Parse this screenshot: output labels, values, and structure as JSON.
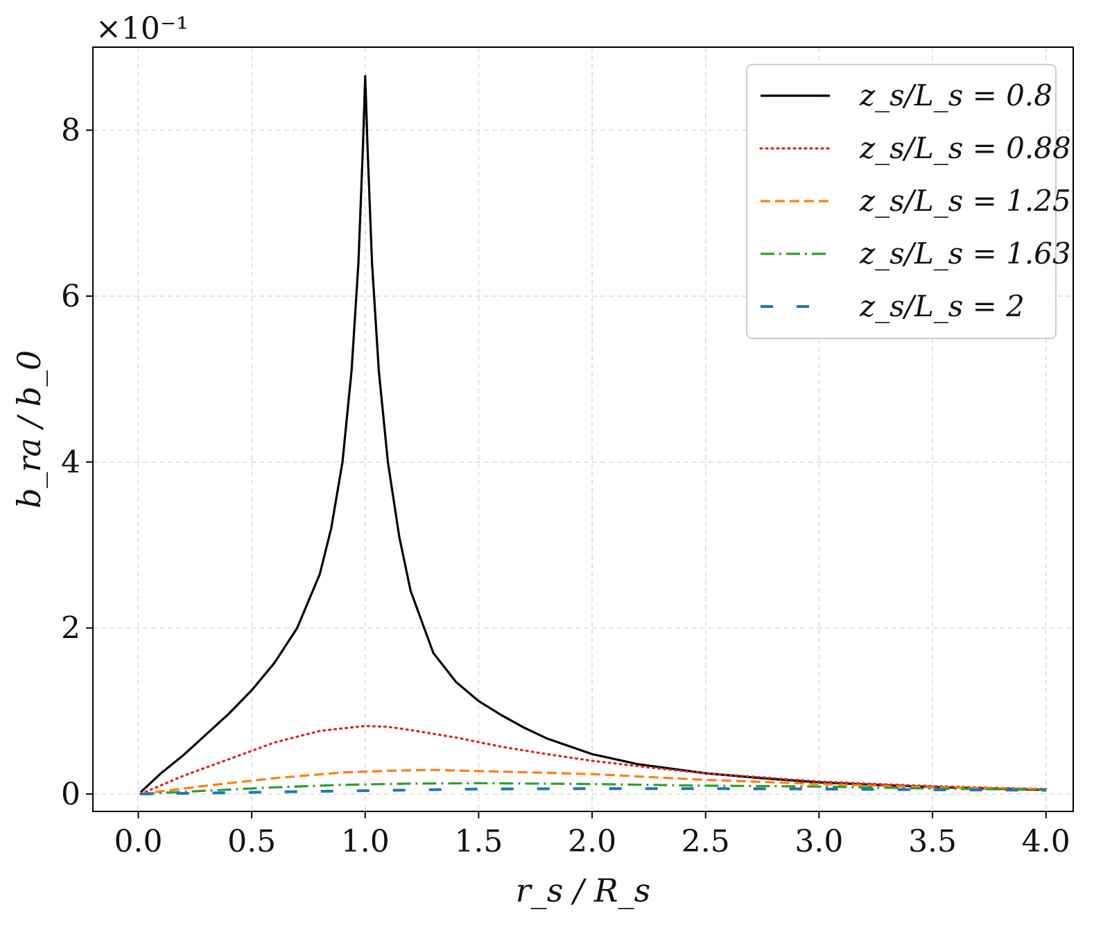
{
  "chart_data": {
    "type": "line",
    "xlabel": "r_s / R_s",
    "ylabel": "b_ra / b_0",
    "offset_text": "×10⁻¹",
    "grid": true,
    "legend_position": "top-right",
    "xlim": [
      -0.2,
      4.12
    ],
    "ylim": [
      -0.21,
      9.0
    ],
    "xticks": [
      0.0,
      0.5,
      1.0,
      1.5,
      2.0,
      2.5,
      3.0,
      3.5,
      4.0
    ],
    "xtick_labels": [
      "0.0",
      "0.5",
      "1.0",
      "1.5",
      "2.0",
      "2.5",
      "3.0",
      "3.5",
      "4.0"
    ],
    "yticks": [
      0,
      2,
      4,
      6,
      8
    ],
    "ytick_labels": [
      "0",
      "2",
      "4",
      "6",
      "8"
    ],
    "series": [
      {
        "name": "z_s/L_s = 0.8",
        "color": "#000000",
        "dash": "solid",
        "points": [
          [
            0.01,
            0.02
          ],
          [
            0.1,
            0.25
          ],
          [
            0.2,
            0.47
          ],
          [
            0.3,
            0.72
          ],
          [
            0.4,
            0.97
          ],
          [
            0.5,
            1.25
          ],
          [
            0.6,
            1.58
          ],
          [
            0.7,
            2.0
          ],
          [
            0.8,
            2.65
          ],
          [
            0.85,
            3.2
          ],
          [
            0.9,
            4.0
          ],
          [
            0.94,
            5.1
          ],
          [
            0.97,
            6.4
          ],
          [
            0.99,
            7.8
          ],
          [
            1.0,
            8.65
          ],
          [
            1.01,
            7.8
          ],
          [
            1.03,
            6.4
          ],
          [
            1.06,
            5.1
          ],
          [
            1.1,
            4.0
          ],
          [
            1.15,
            3.1
          ],
          [
            1.2,
            2.45
          ],
          [
            1.3,
            1.7
          ],
          [
            1.4,
            1.35
          ],
          [
            1.5,
            1.12
          ],
          [
            1.6,
            0.95
          ],
          [
            1.7,
            0.8
          ],
          [
            1.8,
            0.67
          ],
          [
            2.0,
            0.48
          ],
          [
            2.2,
            0.36
          ],
          [
            2.5,
            0.25
          ],
          [
            2.75,
            0.19
          ],
          [
            3.0,
            0.14
          ],
          [
            3.25,
            0.11
          ],
          [
            3.5,
            0.085
          ],
          [
            3.75,
            0.065
          ],
          [
            4.0,
            0.05
          ]
        ]
      },
      {
        "name": "z_s/L_s = 0.88",
        "color": "#d62728",
        "dash": "dotted",
        "points": [
          [
            0.01,
            0.0
          ],
          [
            0.2,
            0.22
          ],
          [
            0.4,
            0.42
          ],
          [
            0.6,
            0.62
          ],
          [
            0.8,
            0.76
          ],
          [
            1.0,
            0.82
          ],
          [
            1.1,
            0.81
          ],
          [
            1.2,
            0.77
          ],
          [
            1.4,
            0.68
          ],
          [
            1.6,
            0.57
          ],
          [
            1.8,
            0.48
          ],
          [
            2.0,
            0.4
          ],
          [
            2.25,
            0.32
          ],
          [
            2.5,
            0.25
          ],
          [
            2.75,
            0.2
          ],
          [
            3.0,
            0.15
          ],
          [
            3.25,
            0.12
          ],
          [
            3.5,
            0.095
          ],
          [
            3.75,
            0.075
          ],
          [
            4.0,
            0.06
          ]
        ]
      },
      {
        "name": "z_s/L_s = 1.25",
        "color": "#ff7f0e",
        "dash": "dashed",
        "points": [
          [
            0.01,
            0.0
          ],
          [
            0.3,
            0.1
          ],
          [
            0.6,
            0.19
          ],
          [
            0.9,
            0.26
          ],
          [
            1.1,
            0.28
          ],
          [
            1.3,
            0.29
          ],
          [
            1.6,
            0.27
          ],
          [
            2.0,
            0.24
          ],
          [
            2.5,
            0.17
          ],
          [
            3.0,
            0.12
          ],
          [
            3.5,
            0.08
          ],
          [
            4.0,
            0.06
          ]
        ]
      },
      {
        "name": "z_s/L_s = 1.63",
        "color": "#2ca02c",
        "dash": "dashdot",
        "points": [
          [
            0.01,
            0.0
          ],
          [
            0.3,
            0.04
          ],
          [
            0.6,
            0.08
          ],
          [
            0.9,
            0.11
          ],
          [
            1.2,
            0.125
          ],
          [
            1.5,
            0.13
          ],
          [
            2.0,
            0.12
          ],
          [
            2.5,
            0.1
          ],
          [
            3.0,
            0.09
          ],
          [
            3.5,
            0.065
          ],
          [
            4.0,
            0.05
          ]
        ]
      },
      {
        "name": "z_s/L_s = 2",
        "color": "#1f77b4",
        "dash": "longdash",
        "points": [
          [
            0.01,
            0.0
          ],
          [
            0.5,
            0.02
          ],
          [
            1.0,
            0.04
          ],
          [
            1.5,
            0.06
          ],
          [
            2.0,
            0.065
          ],
          [
            2.5,
            0.065
          ],
          [
            3.0,
            0.06
          ],
          [
            3.5,
            0.05
          ],
          [
            4.0,
            0.045
          ]
        ]
      }
    ]
  }
}
